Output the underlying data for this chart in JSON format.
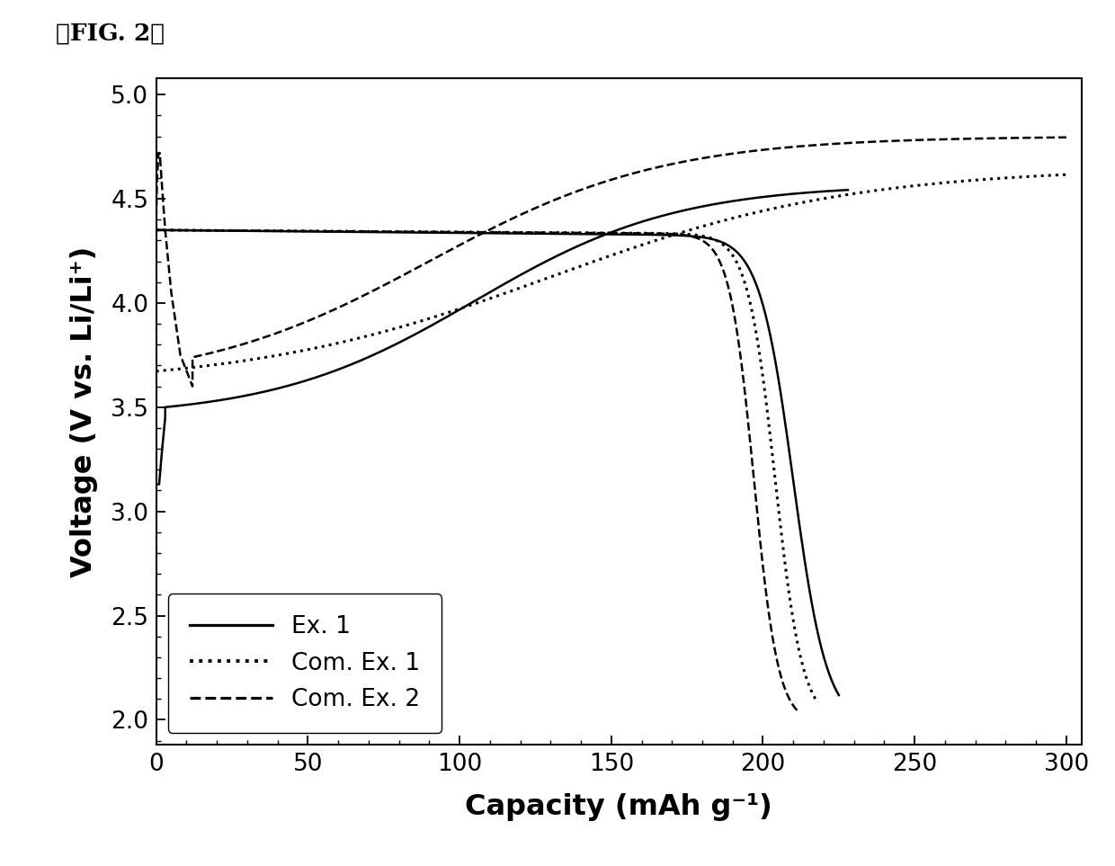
{
  "title": "』FIG. 2】",
  "xlabel": "Capacity (mAh g⁻¹)",
  "ylabel": "Voltage (V vs. Li/Li⁺)",
  "xlim": [
    0,
    305
  ],
  "ylim": [
    1.88,
    5.08
  ],
  "yticks": [
    2.0,
    2.5,
    3.0,
    3.5,
    4.0,
    4.5,
    5.0
  ],
  "xticks": [
    0,
    50,
    100,
    150,
    200,
    250,
    300
  ],
  "legend_labels": [
    "Ex. 1",
    "Com. Ex. 1",
    "Com. Ex. 2"
  ],
  "background_color": "#ffffff",
  "line_color": "#000000",
  "linewidth": 1.8
}
